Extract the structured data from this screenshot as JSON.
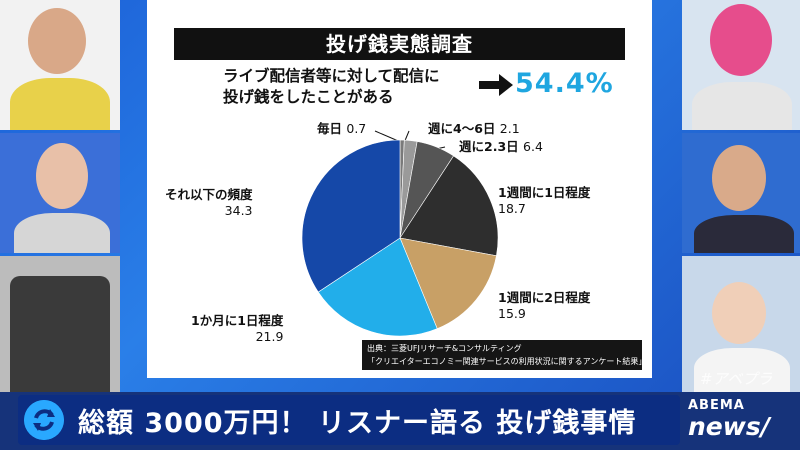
{
  "board": {
    "title": "投げ銭実態調査",
    "headline_line1": "ライブ配信者等に対して配信に",
    "headline_line2": "投げ銭をしたことがある",
    "headline_value": "54.4%",
    "source_line1": "出典：三菱UFJリサーチ&コンサルティング",
    "source_line2": "「クリエイターエコノミー関連サービスの利用状況に関するアンケート結果」"
  },
  "chart_data": {
    "type": "pie",
    "title": "投げ銭実態調査",
    "slices": [
      {
        "label": "毎日",
        "value": 0.7,
        "color": "#7a7a7a"
      },
      {
        "label": "週に4〜6日",
        "value": 2.1,
        "color": "#9a9a9a"
      },
      {
        "label": "週に2.3日",
        "value": 6.4,
        "color": "#555555"
      },
      {
        "label": "1週間に1日程度",
        "value": 18.7,
        "color": "#2e2e2e"
      },
      {
        "label": "1週間に2日程度",
        "value": 15.9,
        "color": "#c8a066"
      },
      {
        "label": "1か月に1日程度",
        "value": 21.9,
        "color": "#22aeea"
      },
      {
        "label": "それ以下の頻度",
        "value": 34.3,
        "color": "#1548a8"
      }
    ]
  },
  "labels": {
    "daily": {
      "name": "毎日",
      "value": "0.7"
    },
    "w46": {
      "name": "週に4〜6日",
      "value": "2.1"
    },
    "w23": {
      "name": "週に2.3日",
      "value": "6.4"
    },
    "w1": {
      "name": "1週間に1日程度",
      "value": "18.7"
    },
    "w2": {
      "name": "1週間に2日程度",
      "value": "15.9"
    },
    "m1": {
      "name": "1か月に1日程度",
      "value": "21.9"
    },
    "less": {
      "name": "それ以下の頻度",
      "value": "34.3"
    }
  },
  "ticker": {
    "text": "総額 3000万円！ リスナー語る 投げ銭事情"
  },
  "logo": {
    "top": "ABEMA",
    "bottom": "news/"
  },
  "hashtag": "#アベプラ",
  "colors": {
    "accent": "#1fa6e0",
    "ticker_bg": "#0c2d82",
    "studio_bg": "#1b5fd6"
  }
}
